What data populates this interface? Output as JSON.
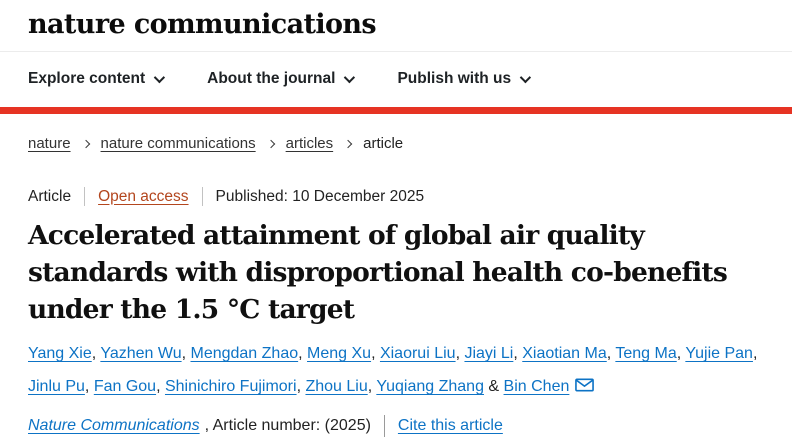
{
  "header": {
    "logo": "nature communications",
    "nav": [
      {
        "label": "Explore content"
      },
      {
        "label": "About the journal"
      },
      {
        "label": "Publish with us"
      }
    ]
  },
  "breadcrumb": {
    "items": [
      {
        "label": "nature",
        "link": true
      },
      {
        "label": "nature communications",
        "link": true
      },
      {
        "label": "articles",
        "link": true
      },
      {
        "label": "article",
        "link": false
      }
    ]
  },
  "article": {
    "type_label": "Article",
    "access_label": "Open access",
    "published_label": "Published: 10 December 2025",
    "title": "Accelerated attainment of global air quality standards with disproportional health co-benefits under the 1.5 °C target",
    "authors": [
      "Yang Xie",
      "Yazhen Wu",
      "Mengdan Zhao",
      "Meng Xu",
      "Xiaorui Liu",
      "Jiayi Li",
      "Xiaotian Ma",
      "Teng Ma",
      "Yujie Pan",
      "Jinlu Pu",
      "Fan Gou",
      "Shinichiro Fujimori",
      "Zhou Liu",
      "Yuqiang Zhang",
      "Bin Chen"
    ],
    "journal_line": {
      "journal": "Nature Communications",
      "middle": ", Article number:  (2025)",
      "cite": "Cite this article"
    }
  },
  "icons": {
    "nav_caret": "chevron-down",
    "breadcrumb_separator": "chevron-right",
    "corresponding_author": "envelope"
  },
  "colors": {
    "brand_red": "#e63323",
    "link_blue": "#0d73c5",
    "open_access_rust": "#b3461e",
    "text_dark": "#222222",
    "separator_gray": "#c2c2c2"
  }
}
